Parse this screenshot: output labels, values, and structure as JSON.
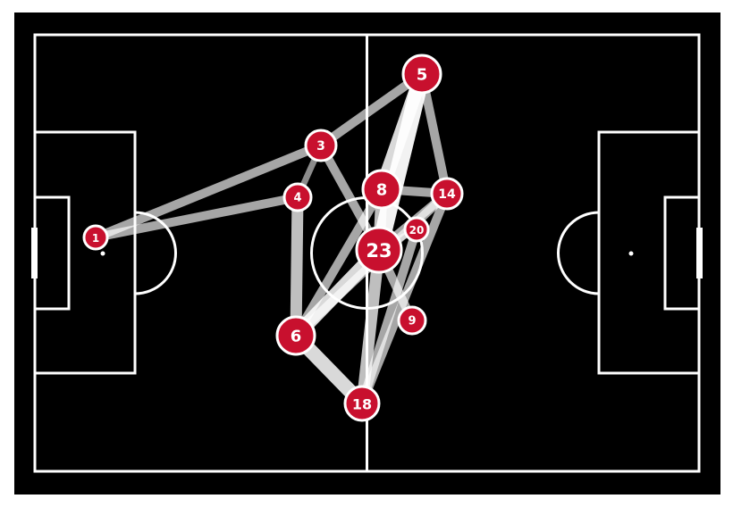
{
  "colors": {
    "background": "#000000",
    "lines": "#ffffff",
    "node_fill": "#c8102e",
    "node_stroke": "#ffffff",
    "label": "#ffffff"
  },
  "players": [
    {
      "id": "1",
      "label": "1",
      "size": 1
    },
    {
      "id": "3",
      "label": "3",
      "size": 2
    },
    {
      "id": "4",
      "label": "4",
      "size": 1.5
    },
    {
      "id": "5",
      "label": "5",
      "size": 3
    },
    {
      "id": "6",
      "label": "6",
      "size": 3
    },
    {
      "id": "8",
      "label": "8",
      "size": 3
    },
    {
      "id": "9",
      "label": "9",
      "size": 1.5
    },
    {
      "id": "14",
      "label": "14",
      "size": 2
    },
    {
      "id": "18",
      "label": "18",
      "size": 2.5
    },
    {
      "id": "20",
      "label": "20",
      "size": 1
    },
    {
      "id": "23",
      "label": "23",
      "size": 4
    }
  ],
  "passes": [
    {
      "from": "1",
      "to": "3",
      "weight": 2
    },
    {
      "from": "1",
      "to": "4",
      "weight": 2
    },
    {
      "from": "3",
      "to": "5",
      "weight": 2
    },
    {
      "from": "3",
      "to": "23",
      "weight": 2
    },
    {
      "from": "3",
      "to": "4",
      "weight": 1
    },
    {
      "from": "4",
      "to": "6",
      "weight": 3
    },
    {
      "from": "5",
      "to": "8",
      "weight": 4
    },
    {
      "from": "5",
      "to": "14",
      "weight": 2
    },
    {
      "from": "5",
      "to": "23",
      "weight": 5
    },
    {
      "from": "8",
      "to": "14",
      "weight": 2
    },
    {
      "from": "8",
      "to": "23",
      "weight": 3
    },
    {
      "from": "14",
      "to": "23",
      "weight": 2
    },
    {
      "from": "14",
      "to": "6",
      "weight": 2
    },
    {
      "from": "20",
      "to": "23",
      "weight": 1
    },
    {
      "from": "23",
      "to": "6",
      "weight": 4
    },
    {
      "from": "23",
      "to": "9",
      "weight": 2
    },
    {
      "from": "23",
      "to": "18",
      "weight": 3
    },
    {
      "from": "6",
      "to": "18",
      "weight": 4
    },
    {
      "from": "6",
      "to": "8",
      "weight": 2
    },
    {
      "from": "18",
      "to": "20",
      "weight": 2
    },
    {
      "from": "18",
      "to": "14",
      "weight": 2
    }
  ]
}
